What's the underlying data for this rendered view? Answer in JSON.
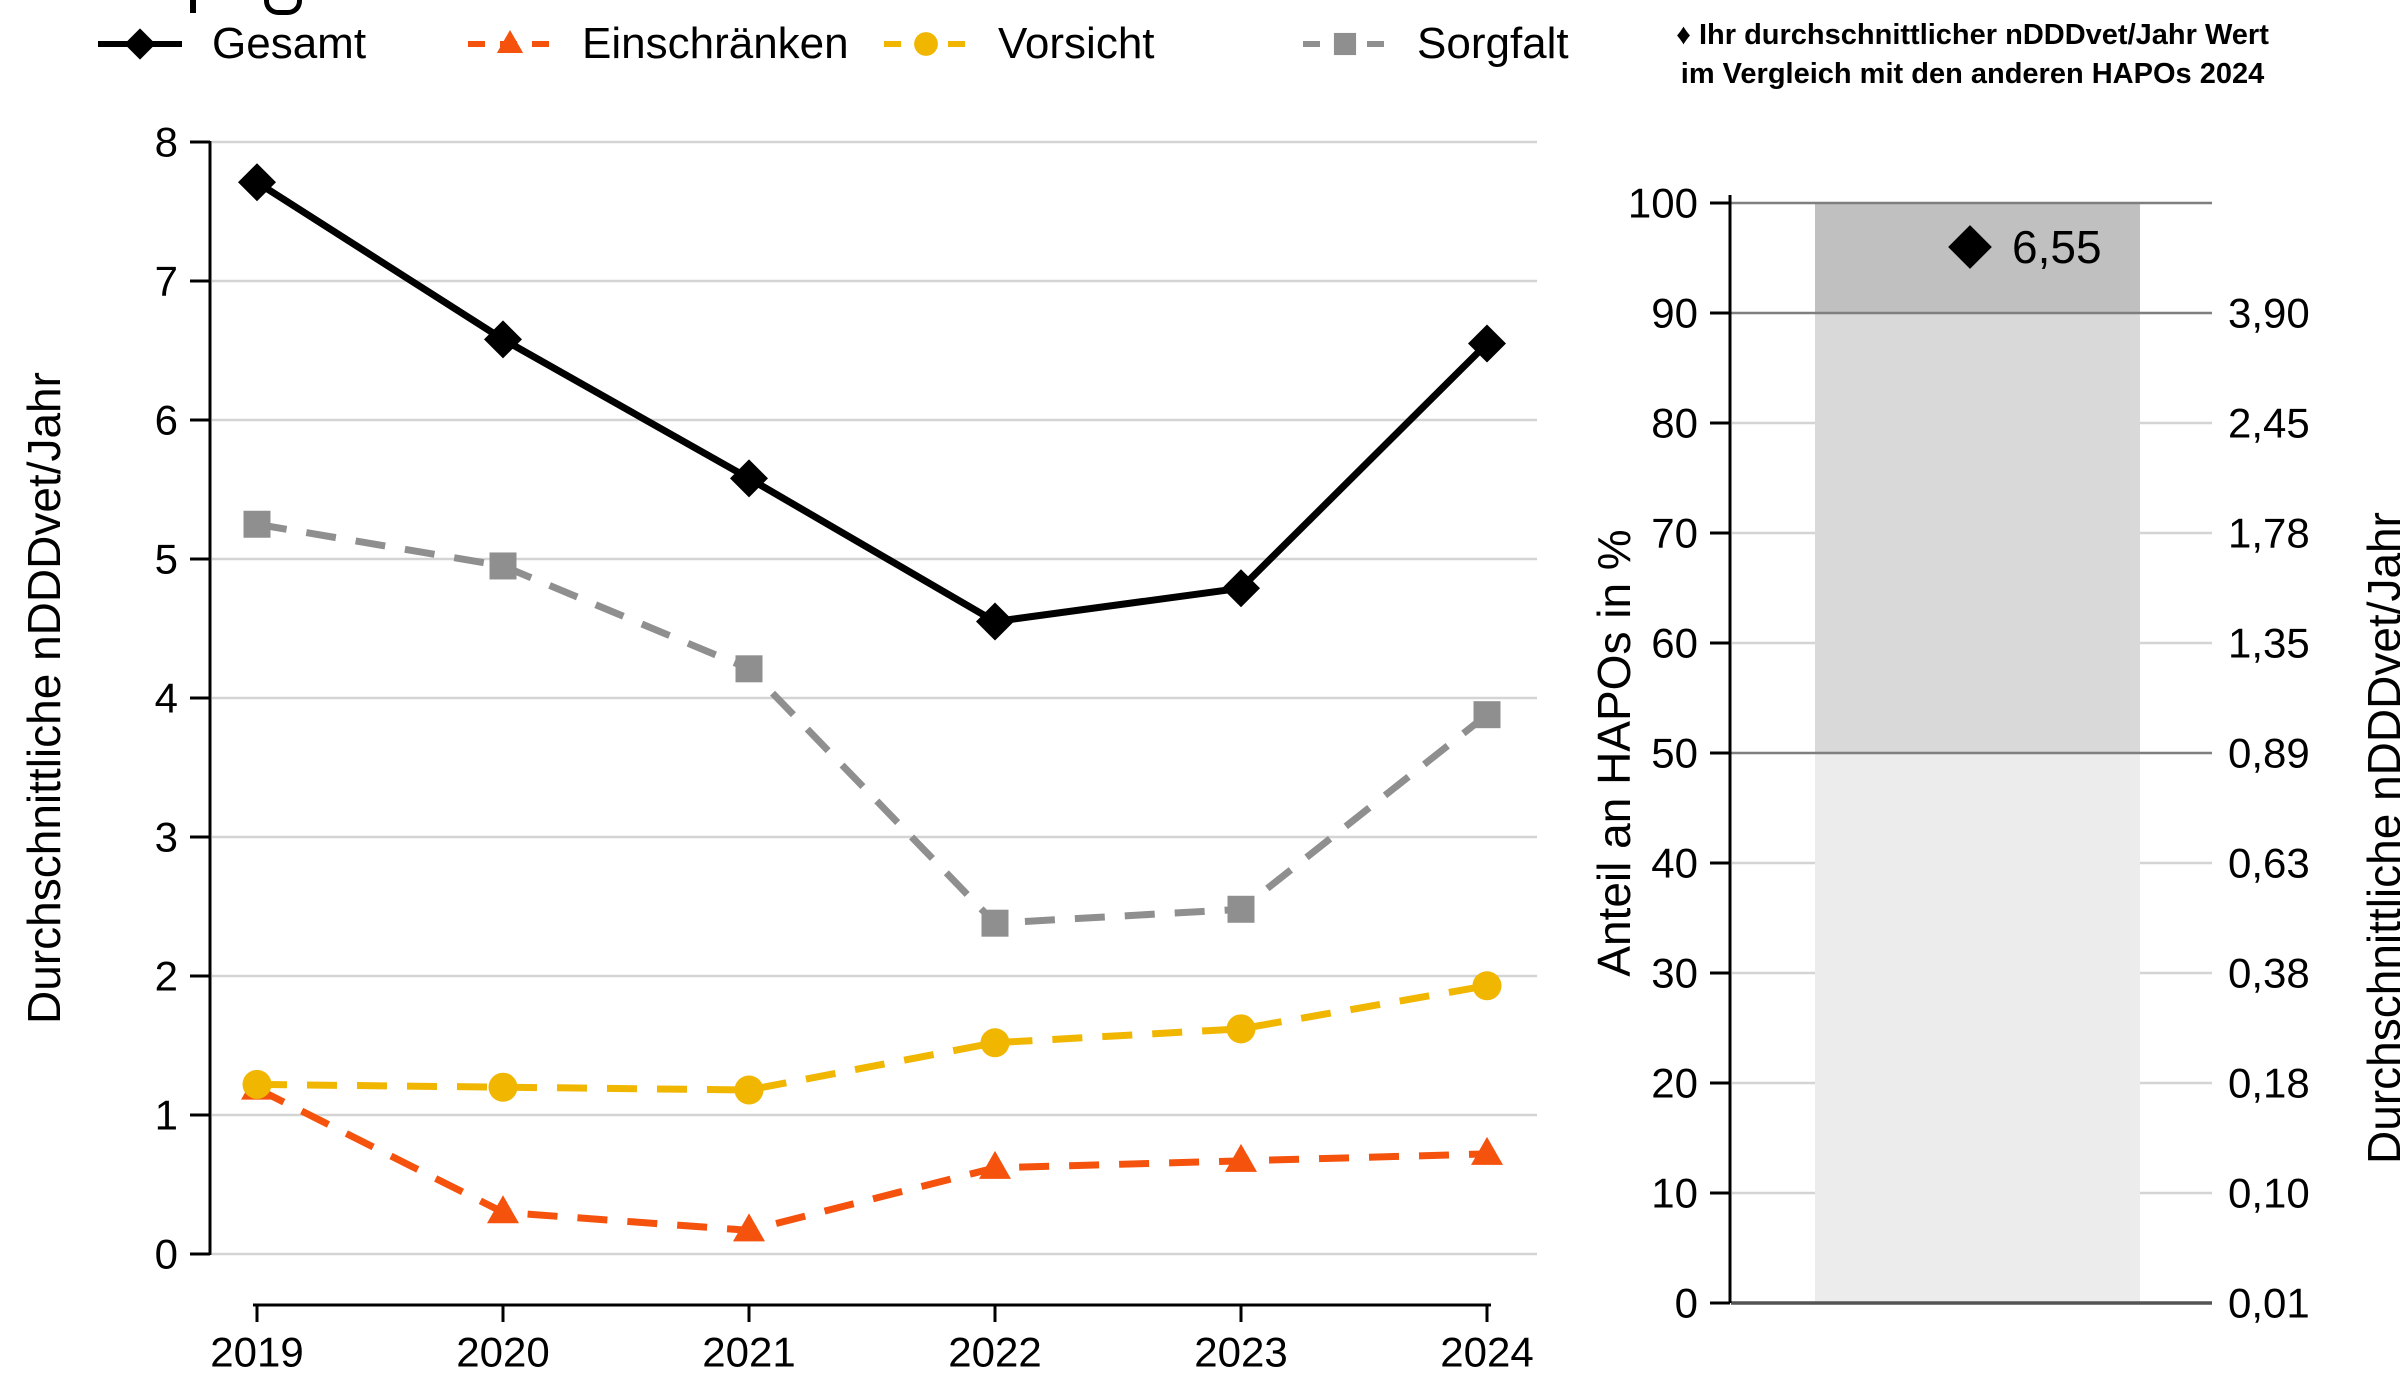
{
  "legend": {
    "items": [
      {
        "label": "Gesamt",
        "color": "#000000",
        "marker": "diamond",
        "line": "solid"
      },
      {
        "label": "Einschränken",
        "color": "#F4520D",
        "marker": "triangle",
        "line": "dashed"
      },
      {
        "label": "Vorsicht",
        "color": "#F0B600",
        "marker": "circle",
        "line": "dashed"
      },
      {
        "label": "Sorgfalt",
        "color": "#8F8F8F",
        "marker": "square",
        "line": "dashed"
      }
    ]
  },
  "right_title": {
    "line1": "♦ Ihr durchschnittlicher nDDDvet/Jahr Wert",
    "line2": "im Vergleich mit den anderen HAPOs 2024"
  },
  "chart_data": [
    {
      "type": "line",
      "title": "",
      "xlabel": "",
      "ylabel": "Durchschnittliche nDDDvet/Jahr",
      "x": [
        2019,
        2020,
        2021,
        2022,
        2023,
        2024
      ],
      "ylim": [
        0,
        8
      ],
      "yticks": [
        0,
        1,
        2,
        3,
        4,
        5,
        6,
        7,
        8
      ],
      "grid": "horizontal",
      "legend_position": "top",
      "series": [
        {
          "name": "Gesamt",
          "color": "#000000",
          "marker": "diamond",
          "dash": "solid",
          "values": [
            7.71,
            6.58,
            5.58,
            4.55,
            4.79,
            6.55
          ]
        },
        {
          "name": "Einschränken",
          "color": "#F4520D",
          "marker": "triangle",
          "dash": "dashed",
          "values": [
            1.19,
            0.3,
            0.17,
            0.62,
            0.67,
            0.72
          ]
        },
        {
          "name": "Vorsicht",
          "color": "#F0B600",
          "marker": "circle",
          "dash": "dashed",
          "values": [
            1.22,
            1.2,
            1.18,
            1.52,
            1.62,
            1.93
          ]
        },
        {
          "name": "Sorgfalt",
          "color": "#8F8F8F",
          "marker": "square",
          "dash": "dashed",
          "values": [
            5.25,
            4.95,
            4.21,
            2.38,
            2.48,
            3.88
          ]
        }
      ]
    },
    {
      "type": "bar",
      "title": "",
      "ylabel_left": "Anteil an HAPOs in %",
      "ylabel_right": "Durchschnittliche nDDDvet/Jahr",
      "ylim": [
        0,
        100
      ],
      "yticks_left": [
        0,
        10,
        20,
        30,
        40,
        50,
        60,
        70,
        80,
        90,
        100
      ],
      "yticks_right": [
        {
          "pct": 0,
          "label": "0,01"
        },
        {
          "pct": 10,
          "label": "0,10"
        },
        {
          "pct": 20,
          "label": "0,18"
        },
        {
          "pct": 30,
          "label": "0,38"
        },
        {
          "pct": 40,
          "label": "0,63"
        },
        {
          "pct": 50,
          "label": "0,89"
        },
        {
          "pct": 60,
          "label": "1,35"
        },
        {
          "pct": 70,
          "label": "1,78"
        },
        {
          "pct": 80,
          "label": "2,45"
        },
        {
          "pct": 90,
          "label": "3,90"
        }
      ],
      "segments": [
        {
          "from": 0,
          "to": 50,
          "color": "#ECECEC"
        },
        {
          "from": 50,
          "to": 90,
          "color": "#D9D9D9"
        },
        {
          "from": 90,
          "to": 100,
          "color": "#C0C0C0"
        }
      ],
      "boundary_lines_pct": [
        0,
        50,
        90,
        100
      ],
      "marker": {
        "shape": "diamond",
        "color": "#000000",
        "position_pct": 96,
        "value_label": "6,55"
      }
    }
  ]
}
